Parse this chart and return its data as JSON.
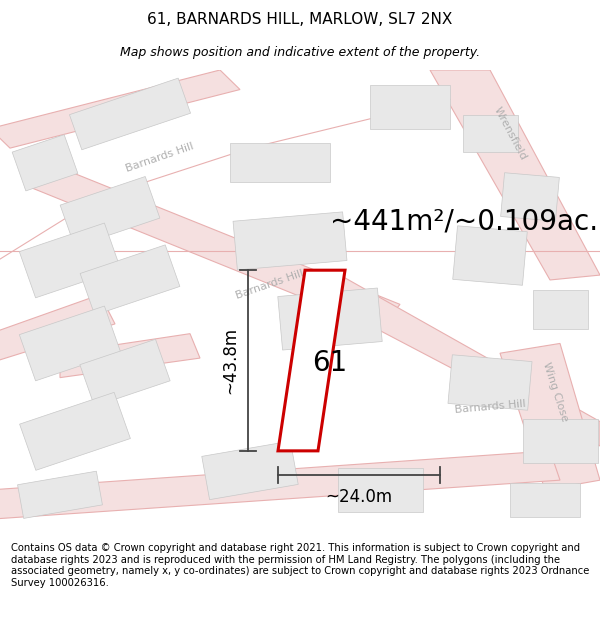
{
  "title": "61, BARNARDS HILL, MARLOW, SL7 2NX",
  "subtitle": "Map shows position and indicative extent of the property.",
  "area_text": "~441m²/~0.109ac.",
  "width_text": "~24.0m",
  "height_text": "~43.8m",
  "number_text": "61",
  "copyright_text": "Contains OS data © Crown copyright and database right 2021. This information is subject to Crown copyright and database rights 2023 and is reproduced with the permission of HM Land Registry. The polygons (including the associated geometry, namely x, y co-ordinates) are subject to Crown copyright and database rights 2023 Ordnance Survey 100026316.",
  "bg_color": "#ffffff",
  "map_bg": "#f8f8f8",
  "road_line_color": "#e8b0b0",
  "road_fill_color": "#f5e0e0",
  "building_color": "#e8e8e8",
  "building_edge": "#c8c8c8",
  "road_text_color": "#b0b0b0",
  "plot_edge_color": "#cc0000",
  "dim_line_color": "#444444",
  "title_fontsize": 11,
  "subtitle_fontsize": 9,
  "area_fontsize": 20,
  "dim_fontsize": 12,
  "number_fontsize": 20,
  "road_text_fontsize": 8,
  "copyright_fontsize": 7.2
}
